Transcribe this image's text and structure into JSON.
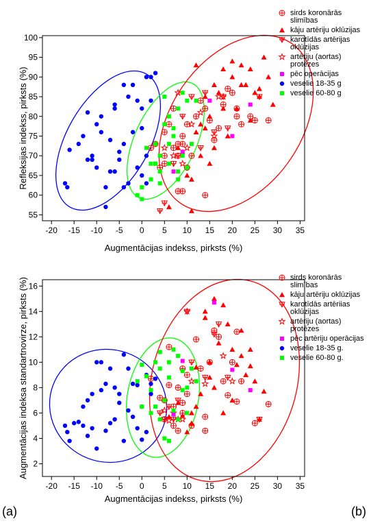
{
  "chart_data": [
    {
      "type": "scatter",
      "panel": "(a)",
      "x_label": "Augmentācijas indekss, pirksts (%)",
      "y_label": "Refleksijas indekss, pirksts (%)",
      "xlim": [
        -22,
        36
      ],
      "ylim": [
        53.5,
        100.5
      ],
      "xticks": [
        -20,
        -15,
        -10,
        -5,
        0,
        5,
        10,
        15,
        20,
        25,
        30,
        35
      ],
      "yticks": [
        55,
        60,
        65,
        70,
        75,
        80,
        85,
        90,
        95,
        100
      ],
      "legend": "top-right",
      "series": [
        {
          "name": "sirds koronārās slimības",
          "color": "#ff0000",
          "marker": "circle-plus",
          "x": [
            2,
            3,
            4,
            5,
            5,
            6,
            7,
            7,
            8,
            8,
            9,
            9,
            10,
            10,
            11,
            12,
            13,
            14,
            15,
            16,
            17,
            18,
            19,
            20,
            21,
            21,
            22,
            24,
            25,
            28,
            5,
            9,
            14,
            8
          ],
          "y": [
            72,
            73,
            67,
            76,
            68,
            78,
            82,
            72,
            70,
            73,
            61,
            75,
            78,
            67,
            70,
            80,
            84,
            60,
            79,
            74,
            77,
            83,
            87,
            86,
            80,
            82,
            78,
            80,
            79,
            79,
            70,
            73,
            82,
            61
          ]
        },
        {
          "name": "kāju artēriju oklūzijas",
          "color": "#ff0000",
          "marker": "triangle",
          "x": [
            6,
            8,
            10,
            11,
            12,
            13,
            14,
            15,
            16,
            16,
            17,
            18,
            19,
            20,
            21,
            22,
            23,
            24,
            25,
            26,
            27,
            28,
            29,
            12,
            14,
            18,
            22,
            24,
            26,
            20,
            15,
            9,
            11,
            13
          ],
          "y": [
            57,
            72,
            65,
            56,
            76,
            70,
            85,
            80,
            88,
            72,
            86,
            92,
            75,
            90,
            82,
            93,
            88,
            92,
            86,
            85,
            95,
            90,
            83,
            93,
            77,
            82,
            88,
            79,
            87,
            94,
            68,
            71,
            64,
            78
          ]
        },
        {
          "name": "karotīdās artērijas oklūzijas",
          "color": "#ff0000",
          "marker": "triangle-down-plus",
          "x": [
            4,
            5,
            7,
            9,
            11,
            13,
            14,
            16,
            18,
            19,
            26,
            8
          ],
          "y": [
            56,
            58,
            68,
            80,
            85,
            72,
            86,
            76,
            85,
            77,
            85,
            70
          ]
        },
        {
          "name": "artēriju (aortas) protēzes",
          "color": "#ff0000",
          "marker": "star",
          "x": [
            5,
            7,
            8,
            9,
            10,
            13,
            16,
            17,
            18,
            11
          ],
          "y": [
            72,
            70,
            86,
            68,
            72,
            81,
            75,
            85,
            85,
            78
          ]
        },
        {
          "name": "pēc operācijas",
          "color": "#ff00ff",
          "marker": "square",
          "x": [
            7,
            15,
            20,
            24,
            9
          ],
          "y": [
            66,
            84,
            75,
            83,
            71
          ]
        },
        {
          "name": "veselie 18-35 g",
          "color": "#0000ff",
          "marker": "circle",
          "x": [
            -17,
            -16.5,
            -16,
            -14,
            -13,
            -12,
            -12,
            -11,
            -10,
            -10,
            -9,
            -8,
            -8,
            -7,
            -7,
            -6,
            -6,
            -5,
            -4,
            -4,
            -3,
            -3,
            -2,
            -2,
            -1,
            -1,
            0,
            0,
            1,
            1,
            2,
            2,
            3,
            -5,
            -9,
            -11,
            -6,
            -4,
            1,
            0
          ],
          "y": [
            63,
            62,
            71.5,
            73,
            75,
            69,
            81,
            70,
            78,
            67,
            76,
            57,
            62,
            74,
            66,
            82,
            66,
            69,
            88,
            62,
            85,
            63,
            88,
            76,
            67,
            84,
            77,
            65,
            90,
            70,
            84,
            90,
            91,
            71,
            80,
            69,
            83,
            73,
            63,
            82
          ]
        },
        {
          "name": "veselie 60-80 g",
          "color": "#00ff00",
          "marker": "square",
          "x": [
            -1,
            0,
            0,
            1,
            2,
            2,
            3,
            3,
            4,
            4,
            5,
            5,
            6,
            6,
            7,
            7,
            8,
            8,
            9,
            9,
            10,
            10,
            11,
            12,
            6,
            4,
            3,
            8
          ],
          "y": [
            60,
            62,
            59,
            72,
            68,
            64,
            68,
            73,
            70,
            66,
            78,
            85,
            80,
            73,
            77,
            75,
            82,
            66,
            70,
            86,
            84,
            67,
            73,
            84,
            68,
            63,
            68,
            64
          ]
        }
      ]
    },
    {
      "type": "scatter",
      "panel": "(b)",
      "x_label": "Augmentācijas indekss, pirksts (%)",
      "y_label": "Augmentācijas indeksa standartnovirze, pirksts (%)",
      "xlim": [
        -22,
        36
      ],
      "ylim": [
        1,
        16.5
      ],
      "xticks": [
        -20,
        -15,
        -10,
        -5,
        0,
        5,
        10,
        15,
        20,
        25,
        30,
        35
      ],
      "yticks": [
        2,
        4,
        6,
        8,
        10,
        12,
        14,
        16
      ],
      "legend": "top-right",
      "series": [
        {
          "name": "sirds koronārās slimības",
          "color": "#ff0000",
          "marker": "circle-plus",
          "x": [
            2,
            4,
            5,
            5,
            6,
            7,
            7,
            8,
            8,
            9,
            9,
            10,
            10,
            11,
            12,
            13,
            14,
            14,
            15,
            16,
            17,
            18,
            19,
            20,
            21,
            21,
            22,
            25,
            28,
            6,
            9
          ],
          "y": [
            8.7,
            7.2,
            7,
            5.5,
            8.2,
            6.5,
            5,
            8,
            4.6,
            9.5,
            6,
            9,
            7.5,
            5,
            11.8,
            9.5,
            5.7,
            4.6,
            10,
            12.5,
            12,
            8.5,
            7.4,
            10,
            6.9,
            12.4,
            8.5,
            5.2,
            6.7,
            11.2,
            6.8
          ]
        },
        {
          "name": "kāju artēriju oklūzijas",
          "color": "#ff0000",
          "marker": "triangle",
          "x": [
            6,
            8,
            10,
            11,
            12,
            13,
            14,
            15,
            16,
            17,
            18,
            19,
            20,
            21,
            22,
            23,
            24,
            25,
            26,
            27,
            12,
            14,
            18,
            22,
            24,
            9,
            11,
            16,
            20,
            15
          ],
          "y": [
            5.7,
            6.8,
            4.5,
            6,
            9.6,
            7.5,
            14,
            10,
            15,
            11.5,
            14.5,
            13,
            7,
            9.8,
            12.5,
            9,
            11,
            8.5,
            5.5,
            7.7,
            6.5,
            13.5,
            6,
            10.5,
            9.7,
            5.8,
            5.2,
            8,
            11,
            8.8
          ]
        },
        {
          "name": "karotīdās artēriias oklūzijas",
          "color": "#ff0000",
          "marker": "triangle-down-plus",
          "x": [
            4,
            5,
            6,
            7,
            10,
            11,
            14,
            16,
            17,
            26,
            8,
            19
          ],
          "y": [
            6,
            5.5,
            6.5,
            5.5,
            14,
            10,
            8.8,
            12.2,
            13,
            5.5,
            7,
            8.8
          ]
        },
        {
          "name": "artēriju (aortas) protēzes",
          "color": "#ff0000",
          "marker": "star",
          "x": [
            5,
            7,
            8,
            9,
            10,
            14,
            18,
            20,
            11,
            6
          ],
          "y": [
            6.2,
            6,
            5.5,
            5.5,
            14,
            8.3,
            10.5,
            8.5,
            8.5,
            5.4
          ]
        },
        {
          "name": "pēc artēriju operācijas",
          "color": "#ff00ff",
          "marker": "square",
          "x": [
            7,
            16,
            20,
            24,
            9
          ],
          "y": [
            5.9,
            14.7,
            9.4,
            7.8,
            10.1
          ]
        },
        {
          "name": "veselie 18-35 g.",
          "color": "#0000ff",
          "marker": "circle",
          "x": [
            -17,
            -16.5,
            -16,
            -15,
            -14,
            -13,
            -12,
            -12,
            -11,
            -10,
            -10,
            -9,
            -9,
            -8,
            -7,
            -7,
            -6,
            -5,
            -5,
            -4,
            -4,
            -3,
            -3,
            -2,
            -2,
            -1,
            -1,
            0,
            0,
            1,
            1,
            2,
            2,
            3,
            -11,
            -8,
            -13,
            -6
          ],
          "y": [
            5,
            4.5,
            3.8,
            5.2,
            5.3,
            6.5,
            7,
            4.2,
            7.5,
            10,
            3.2,
            7.8,
            10,
            4.6,
            9.5,
            5.2,
            8,
            6.8,
            7.5,
            10.6,
            3.8,
            9.5,
            6.2,
            8.3,
            5.7,
            8.2,
            4.8,
            6.5,
            3.9,
            9,
            4.5,
            7.5,
            8.3,
            8.7,
            4.8,
            8.3,
            5,
            5.5
          ]
        },
        {
          "name": "veselie 60-80 g.",
          "color": "#00ff00",
          "marker": "square",
          "x": [
            -1,
            0,
            0,
            1,
            2,
            2,
            3,
            3,
            4,
            4,
            5,
            5,
            6,
            6,
            7,
            7,
            8,
            8,
            9,
            9,
            10,
            10,
            11,
            12,
            6,
            4
          ],
          "y": [
            8.5,
            9.8,
            6.5,
            8.9,
            6,
            7.8,
            10,
            6.5,
            9.5,
            5.5,
            7,
            4,
            10,
            8.8,
            11,
            6.2,
            10.5,
            5.5,
            9.3,
            7.8,
            8,
            6,
            9.5,
            8.5,
            3.8,
            10.8
          ]
        }
      ]
    }
  ]
}
